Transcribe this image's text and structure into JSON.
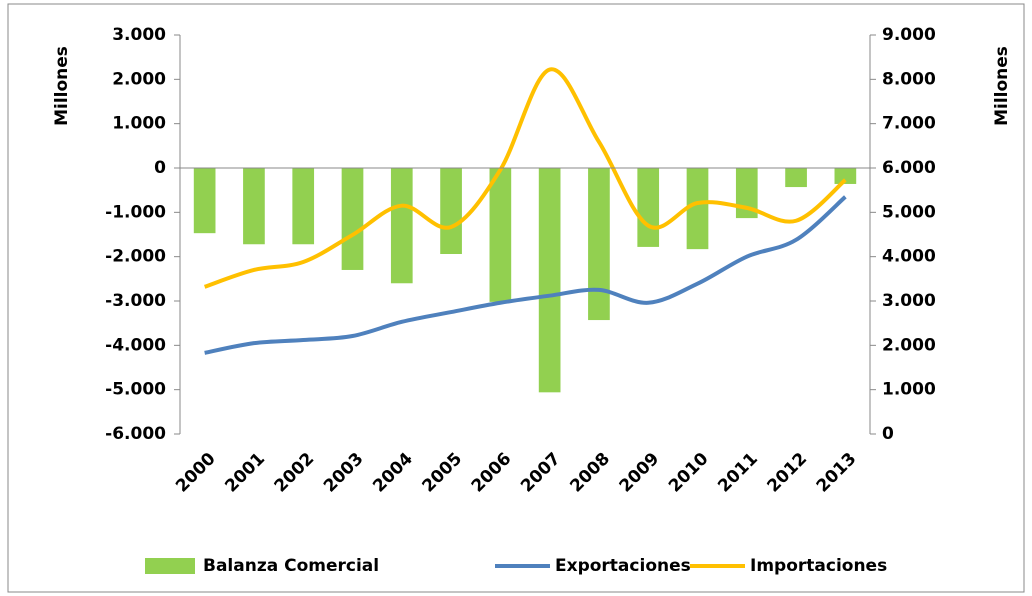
{
  "chart_data": {
    "type": "bar-line",
    "y_label": "Millones",
    "y2_label": "Millones",
    "categories": [
      "2000",
      "2001",
      "2002",
      "2003",
      "2004",
      "2005",
      "2006",
      "2007",
      "2008",
      "2009",
      "2010",
      "2011",
      "2012",
      "2013"
    ],
    "series": [
      {
        "name": "Balanza Comercial",
        "type": "bar",
        "color": "#92d050",
        "values": [
          -1470,
          -1720,
          -1720,
          -2300,
          -2600,
          -1940,
          -3020,
          -5060,
          -3430,
          -1780,
          -1830,
          -1130,
          -430,
          -360
        ]
      },
      {
        "name": "Exportaciones",
        "type": "line",
        "axis": "y2",
        "color": "#4f81bd",
        "values": [
          1830,
          2050,
          2120,
          2210,
          2530,
          2750,
          2960,
          3120,
          3250,
          2960,
          3390,
          4000,
          4380,
          5350
        ]
      },
      {
        "name": "Importaciones",
        "type": "line",
        "axis": "y2",
        "color": "#ffc000",
        "values": [
          3320,
          3700,
          3880,
          4490,
          5150,
          4670,
          5960,
          8220,
          6590,
          4700,
          5210,
          5100,
          4810,
          5730
        ]
      }
    ],
    "ylim": [
      -6000,
      3000
    ],
    "yticks": [
      {
        "value": -6000,
        "label": "-6.000"
      },
      {
        "value": -5000,
        "label": "-5.000"
      },
      {
        "value": -4000,
        "label": "-4.000"
      },
      {
        "value": -3000,
        "label": "-3.000"
      },
      {
        "value": -2000,
        "label": "-2.000"
      },
      {
        "value": -1000,
        "label": "-1.000"
      },
      0,
      {
        "value": 1000,
        "label": "1.000"
      },
      {
        "value": 2000,
        "label": "2.000"
      },
      {
        "value": 3000,
        "label": "3.000"
      }
    ],
    "y2lim": [
      0,
      9000
    ],
    "y2ticks": [
      0,
      {
        "value": 1000,
        "label": "1.000"
      },
      {
        "value": 2000,
        "label": "2.000"
      },
      {
        "value": 3000,
        "label": "3.000"
      },
      {
        "value": 4000,
        "label": "4.000"
      },
      {
        "value": 5000,
        "label": "5.000"
      },
      {
        "value": 6000,
        "label": "6.000"
      },
      {
        "value": 7000,
        "label": "7.000"
      },
      {
        "value": 8000,
        "label": "8.000"
      },
      {
        "value": 9000,
        "label": "9.000"
      }
    ],
    "legend": "bottom"
  }
}
